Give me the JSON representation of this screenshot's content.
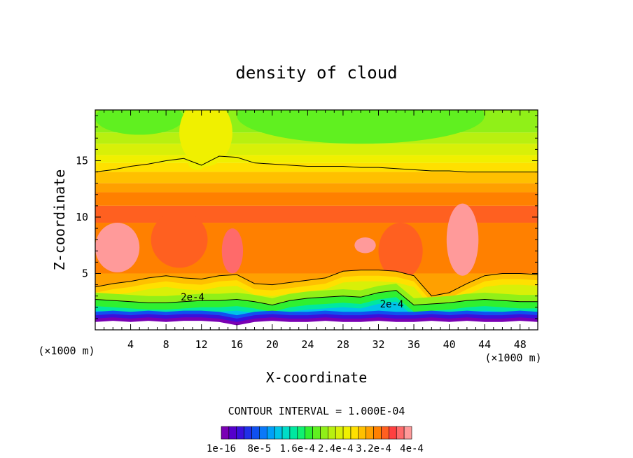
{
  "chart_data": {
    "type": "heatmap",
    "title": "density of cloud",
    "xlabel": "X-coordinate",
    "ylabel": "Z-coordinate",
    "x_unit": "(×1000 m)",
    "y_unit": "(×1000 m)",
    "xlim": [
      0,
      50
    ],
    "ylim": [
      0,
      19.5
    ],
    "x_ticks": [
      4,
      8,
      12,
      16,
      20,
      24,
      28,
      32,
      36,
      40,
      44,
      48
    ],
    "y_ticks": [
      5,
      10,
      15
    ],
    "x_tick_labels": [
      "4",
      "8",
      "12",
      "16",
      "20",
      "24",
      "28",
      "32",
      "36",
      "40",
      "44",
      "48"
    ],
    "y_tick_labels": [
      "5",
      "10",
      "15"
    ],
    "contour_interval_label": "CONTOUR INTERVAL = 1.000E-04",
    "contour_interval": 0.0001,
    "contour_annotations": [
      {
        "text": "2e-4",
        "x": 11,
        "z": 2.6
      },
      {
        "text": "2e-4",
        "x": 33.5,
        "z": 2.0
      }
    ],
    "colorbar": {
      "min": 1e-16,
      "max": 0.0004,
      "levels": 25,
      "tick_labels": [
        "1e-16",
        "8e-5",
        "1.6e-4",
        "2.4e-4",
        "3.2e-4",
        "4e-4"
      ],
      "colors": [
        "#7a00b4",
        "#5500cc",
        "#3a10dc",
        "#2030e8",
        "#1050f0",
        "#0a78f8",
        "#00a0f8",
        "#00c4e8",
        "#00dcc8",
        "#00e8a0",
        "#10f070",
        "#30f030",
        "#60f020",
        "#90f018",
        "#b8f010",
        "#d8f008",
        "#f0f000",
        "#ffe000",
        "#ffc000",
        "#ffa000",
        "#ff8000",
        "#ff6020",
        "#ff4040",
        "#ff6a6a",
        "#ff9a9a"
      ]
    },
    "profile_x": [
      0,
      2,
      4,
      6,
      8,
      10,
      12,
      14,
      16,
      18,
      20,
      22,
      24,
      26,
      28,
      30,
      32,
      34,
      36,
      38,
      40,
      42,
      44,
      46,
      48,
      50
    ],
    "contour_upper_z": [
      14.0,
      14.2,
      14.5,
      14.7,
      15.0,
      15.2,
      14.6,
      15.4,
      15.3,
      14.8,
      14.7,
      14.6,
      14.5,
      14.5,
      14.5,
      14.4,
      14.4,
      14.3,
      14.2,
      14.1,
      14.1,
      14.0,
      14.0,
      14.0,
      14.0,
      14.0
    ],
    "contour_lower_z": [
      3.8,
      4.1,
      4.3,
      4.6,
      4.8,
      4.6,
      4.5,
      4.8,
      4.9,
      4.1,
      4.0,
      4.2,
      4.4,
      4.6,
      5.2,
      5.3,
      5.3,
      5.2,
      4.8,
      3.0,
      3.3,
      4.1,
      4.8,
      5.0,
      5.0,
      4.9
    ],
    "contour_2e4_z": [
      2.7,
      2.6,
      2.5,
      2.4,
      2.4,
      2.5,
      2.6,
      2.6,
      2.7,
      2.5,
      2.2,
      2.6,
      2.8,
      2.9,
      3.0,
      2.9,
      3.3,
      3.5,
      2.2,
      2.3,
      2.4,
      2.6,
      2.7,
      2.6,
      2.5,
      2.5
    ],
    "base_z": [
      1.0,
      1.1,
      1.0,
      1.1,
      1.0,
      1.1,
      1.1,
      1.0,
      0.7,
      1.0,
      1.1,
      1.0,
      1.0,
      1.1,
      1.0,
      1.0,
      1.1,
      1.0,
      1.0,
      1.1,
      1.0,
      1.1,
      1.0,
      1.0,
      1.1,
      1.0
    ],
    "blobs": [
      {
        "x": 2.5,
        "z": 7.3,
        "rx": 2.5,
        "rz": 2.2,
        "level": 24
      },
      {
        "x": 9.5,
        "z": 8.0,
        "rx": 3.2,
        "rz": 2.5,
        "level": 21
      },
      {
        "x": 15.5,
        "z": 7.0,
        "rx": 1.2,
        "rz": 2.0,
        "level": 23
      },
      {
        "x": 30.5,
        "z": 7.5,
        "rx": 1.2,
        "rz": 0.7,
        "level": 24
      },
      {
        "x": 34.5,
        "z": 7.0,
        "rx": 2.5,
        "rz": 2.5,
        "level": 21
      },
      {
        "x": 41.5,
        "z": 8.0,
        "rx": 1.8,
        "rz": 3.2,
        "level": 24
      },
      {
        "x": 11.5,
        "z": 14.8,
        "rx": 1.0,
        "rz": 0.6,
        "level": 16
      }
    ]
  }
}
